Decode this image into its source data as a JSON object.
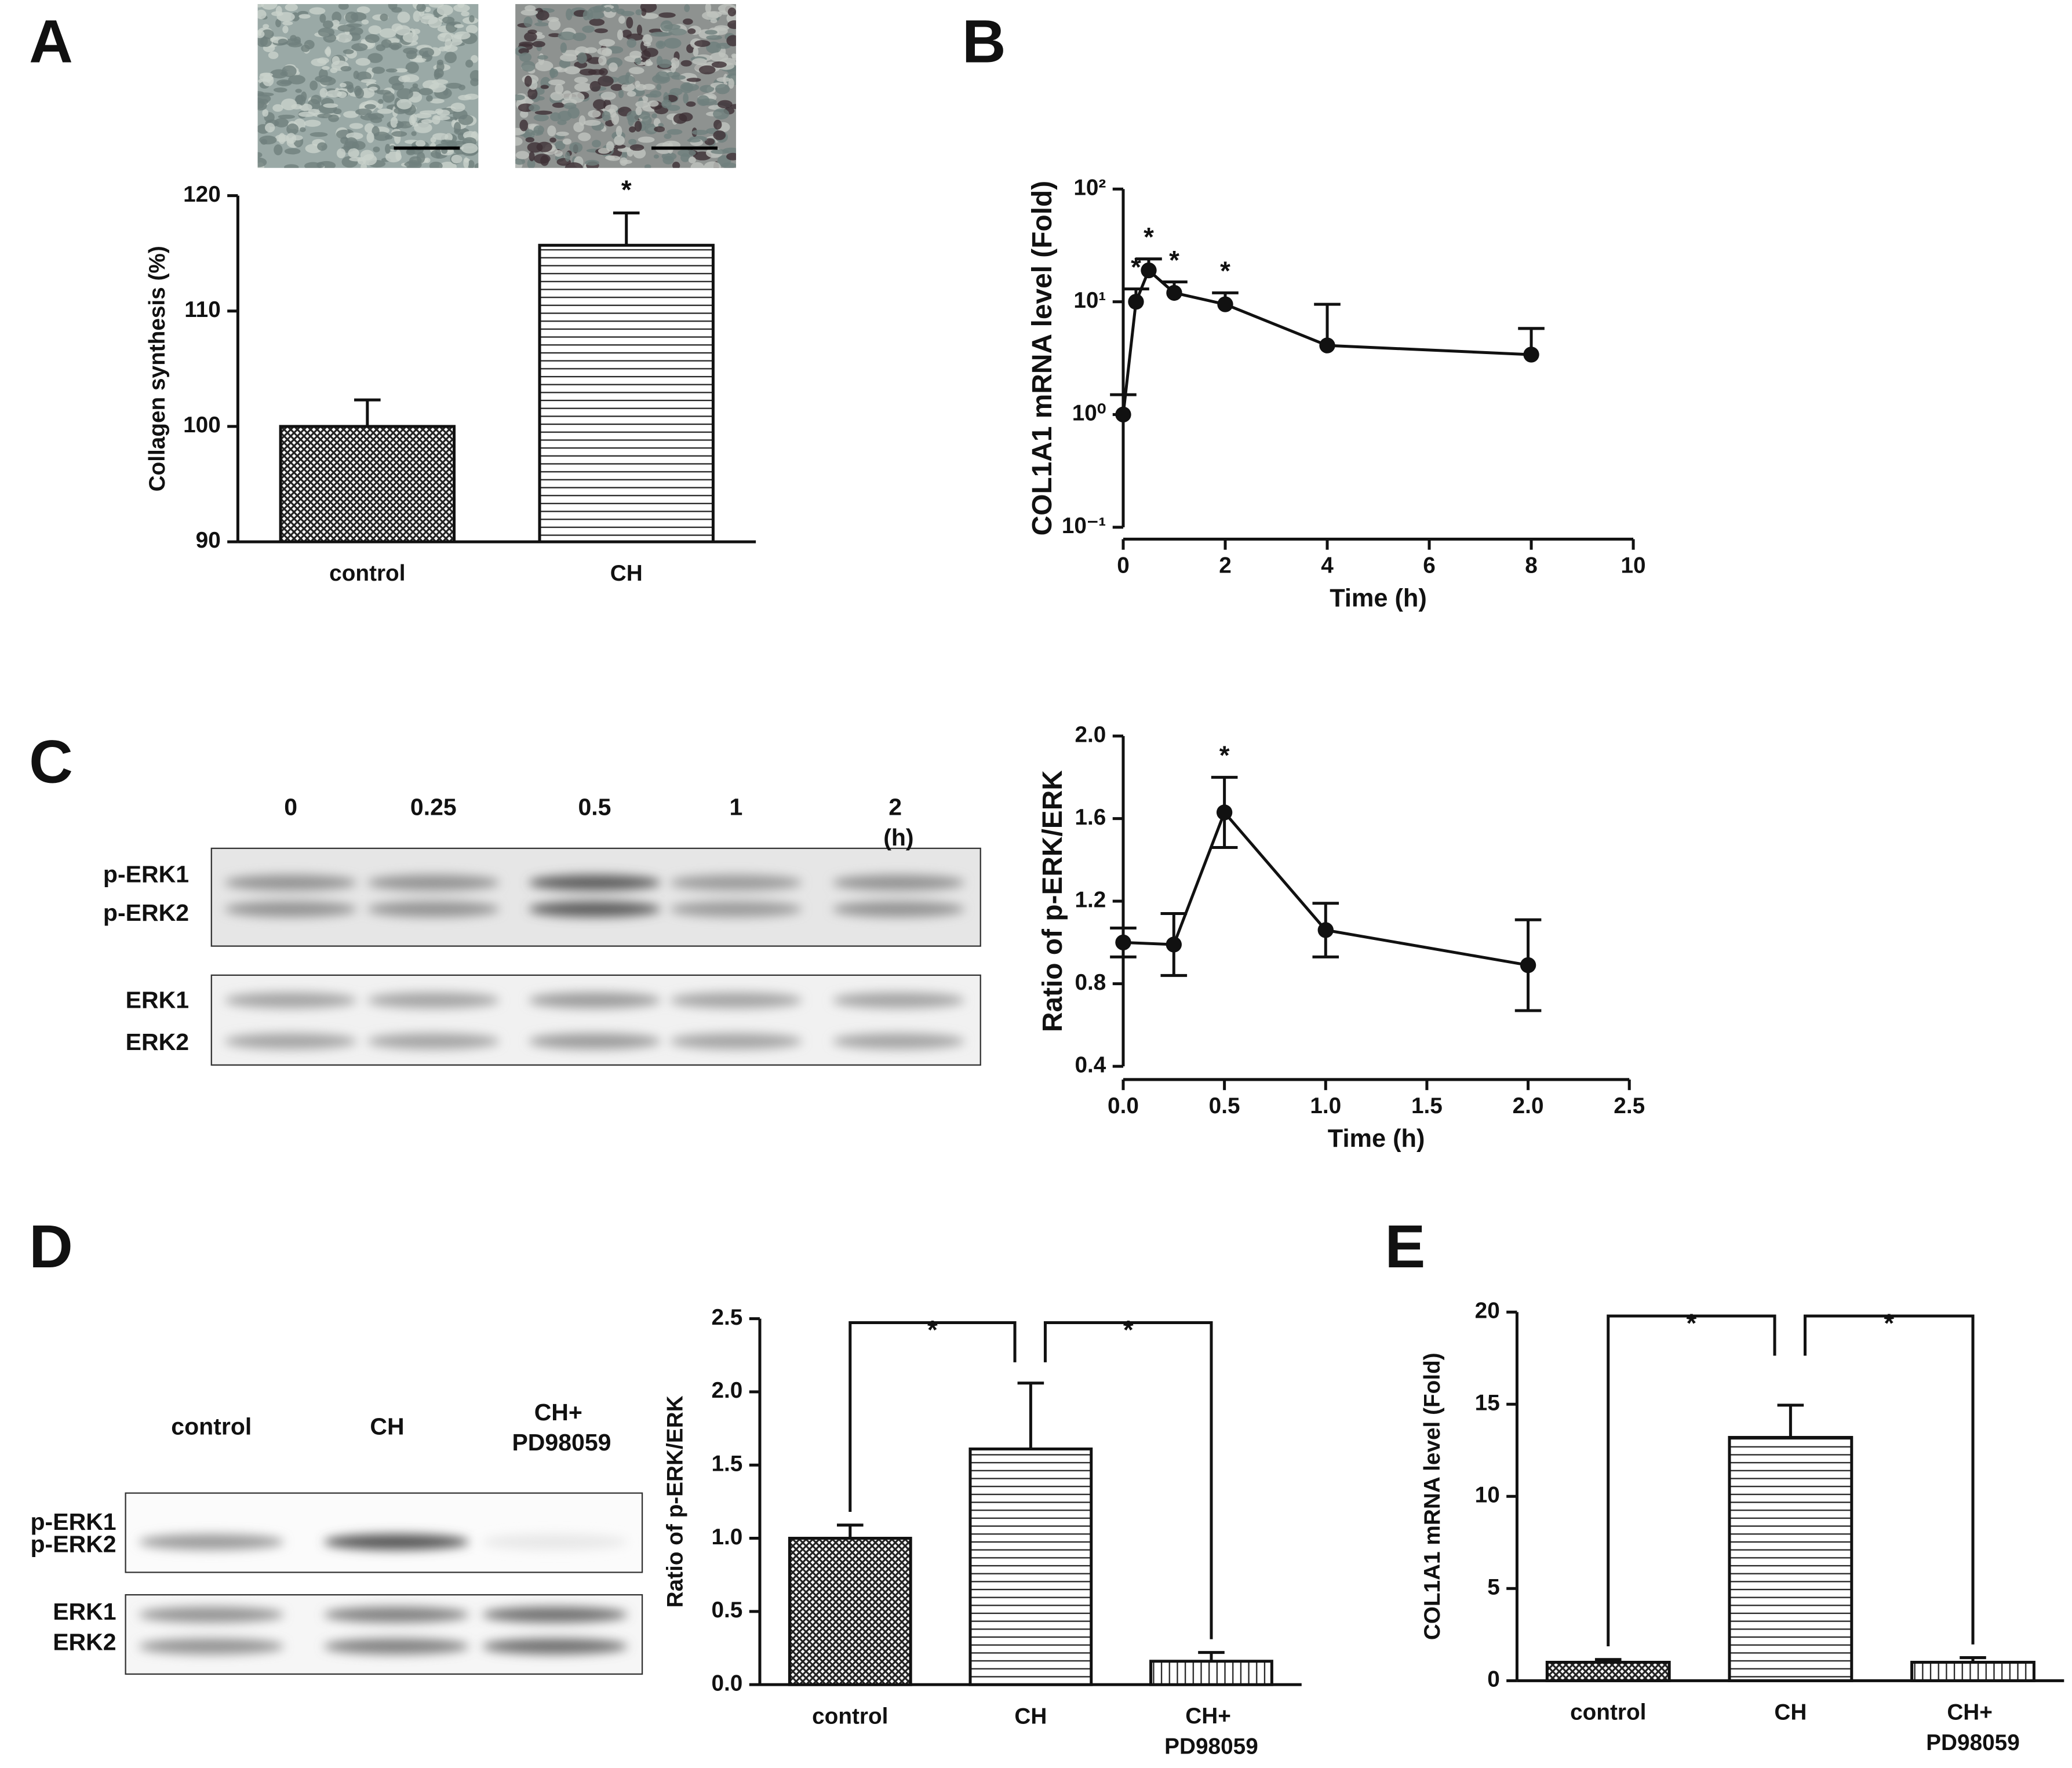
{
  "panel_labels": [
    "A",
    "B",
    "C",
    "D",
    "E"
  ],
  "blots": [
    {
      "lanes": [
        "0",
        "0.25",
        "0.5",
        "1",
        "2 (h)"
      ],
      "bands": [
        "p-ERK1",
        "p-ERK2",
        "ERK1",
        "ERK2"
      ]
    },
    {
      "lanes": [
        "control",
        "CH",
        "CH+ PD98059"
      ],
      "bands": [
        "p-ERK1",
        "p-ERK2",
        "ERK1",
        "ERK2"
      ]
    }
  ],
  "chart_data": [
    {
      "type": "bar",
      "ylabel": "Collagen synthesis (%)",
      "categories": [
        "control",
        "CH"
      ],
      "values": [
        100,
        115.7
      ],
      "errors": [
        2.3,
        2.8
      ],
      "patterns": [
        "crosshatch",
        "horizontal"
      ],
      "ylim": [
        90,
        120
      ],
      "yticks": [
        90,
        100,
        110,
        120
      ],
      "annotations": [
        {
          "text": "*",
          "at": "CH"
        }
      ]
    },
    {
      "type": "line",
      "xlabel": "Time (h)",
      "ylabel": "COL1A1 mRNA level (Fold)",
      "log_y": true,
      "x": [
        0,
        0.25,
        0.5,
        1,
        2,
        4,
        8
      ],
      "values": [
        1,
        10,
        19,
        12,
        9.5,
        4.1,
        3.4
      ],
      "errors": [
        0.5,
        3,
        5,
        3,
        2.5,
        5.4,
        2.4
      ],
      "error_bars": "up",
      "xlim": [
        0,
        10
      ],
      "xticks": [
        0,
        2,
        4,
        6,
        8,
        10
      ],
      "ylim": [
        0.1,
        100
      ],
      "yticks": [
        {
          "value": 0.1,
          "label": "10⁻¹"
        },
        {
          "value": 1,
          "label": "10⁰"
        },
        {
          "value": 10,
          "label": "10¹"
        },
        {
          "value": 100,
          "label": "10²"
        }
      ],
      "annotations": [
        {
          "text": "*",
          "at": 0.25
        },
        {
          "text": "*",
          "at": 0.5
        },
        {
          "text": "*",
          "at": 1
        },
        {
          "text": "*",
          "at": 2
        }
      ]
    },
    {
      "type": "line",
      "xlabel": "Time (h)",
      "ylabel": "Ratio of p-ERK/ERK",
      "x": [
        0,
        0.25,
        0.5,
        1,
        2
      ],
      "values": [
        1.0,
        0.99,
        1.63,
        1.06,
        0.89
      ],
      "errors": [
        0.07,
        0.15,
        0.17,
        0.13,
        0.22
      ],
      "error_bars": "both",
      "xlim": [
        0,
        2.5
      ],
      "xticks": [
        {
          "value": 0,
          "label": "0.0"
        },
        0.5,
        {
          "value": 1,
          "label": "1.0"
        },
        1.5,
        {
          "value": 2,
          "label": "2.0"
        },
        2.5
      ],
      "ylim": [
        0.4,
        2.0
      ],
      "yticks": [
        0.4,
        0.8,
        1.2,
        1.6,
        {
          "value": 2,
          "label": "2.0"
        }
      ],
      "annotations": [
        {
          "text": "*",
          "at": 0.5
        }
      ]
    },
    {
      "type": "bar",
      "ylabel": "Ratio of p-ERK/ERK",
      "categories": [
        "control",
        "CH",
        "CH+ PD98059"
      ],
      "values": [
        1.0,
        1.61,
        0.16
      ],
      "errors": [
        0.09,
        0.45,
        0.06
      ],
      "patterns": [
        "crosshatch",
        "horizontal",
        "vertical"
      ],
      "ylim": [
        0,
        2.5
      ],
      "yticks": [
        {
          "value": 0,
          "label": "0.0"
        },
        0.5,
        {
          "value": 1,
          "label": "1.0"
        },
        1.5,
        {
          "value": 2,
          "label": "2.0"
        },
        2.5
      ],
      "significance": [
        {
          "between": [
            "control",
            "CH"
          ],
          "label": "*"
        },
        {
          "between": [
            "CH",
            "CH+ PD98059"
          ],
          "label": "*"
        }
      ]
    },
    {
      "type": "bar",
      "ylabel": "COL1A1 mRNA level (Fold)",
      "categories": [
        "control",
        "CH",
        "CH+ PD98059"
      ],
      "values": [
        1.0,
        13.2,
        1.0
      ],
      "errors": [
        0.15,
        1.75,
        0.25
      ],
      "patterns": [
        "crosshatch",
        "horizontal",
        "vertical"
      ],
      "ylim": [
        0,
        20
      ],
      "yticks": [
        0,
        5,
        10,
        15,
        20
      ],
      "significance": [
        {
          "between": [
            "control",
            "CH"
          ],
          "label": "*"
        },
        {
          "between": [
            "CH",
            "CH+ PD98059"
          ],
          "label": "*"
        }
      ]
    }
  ]
}
